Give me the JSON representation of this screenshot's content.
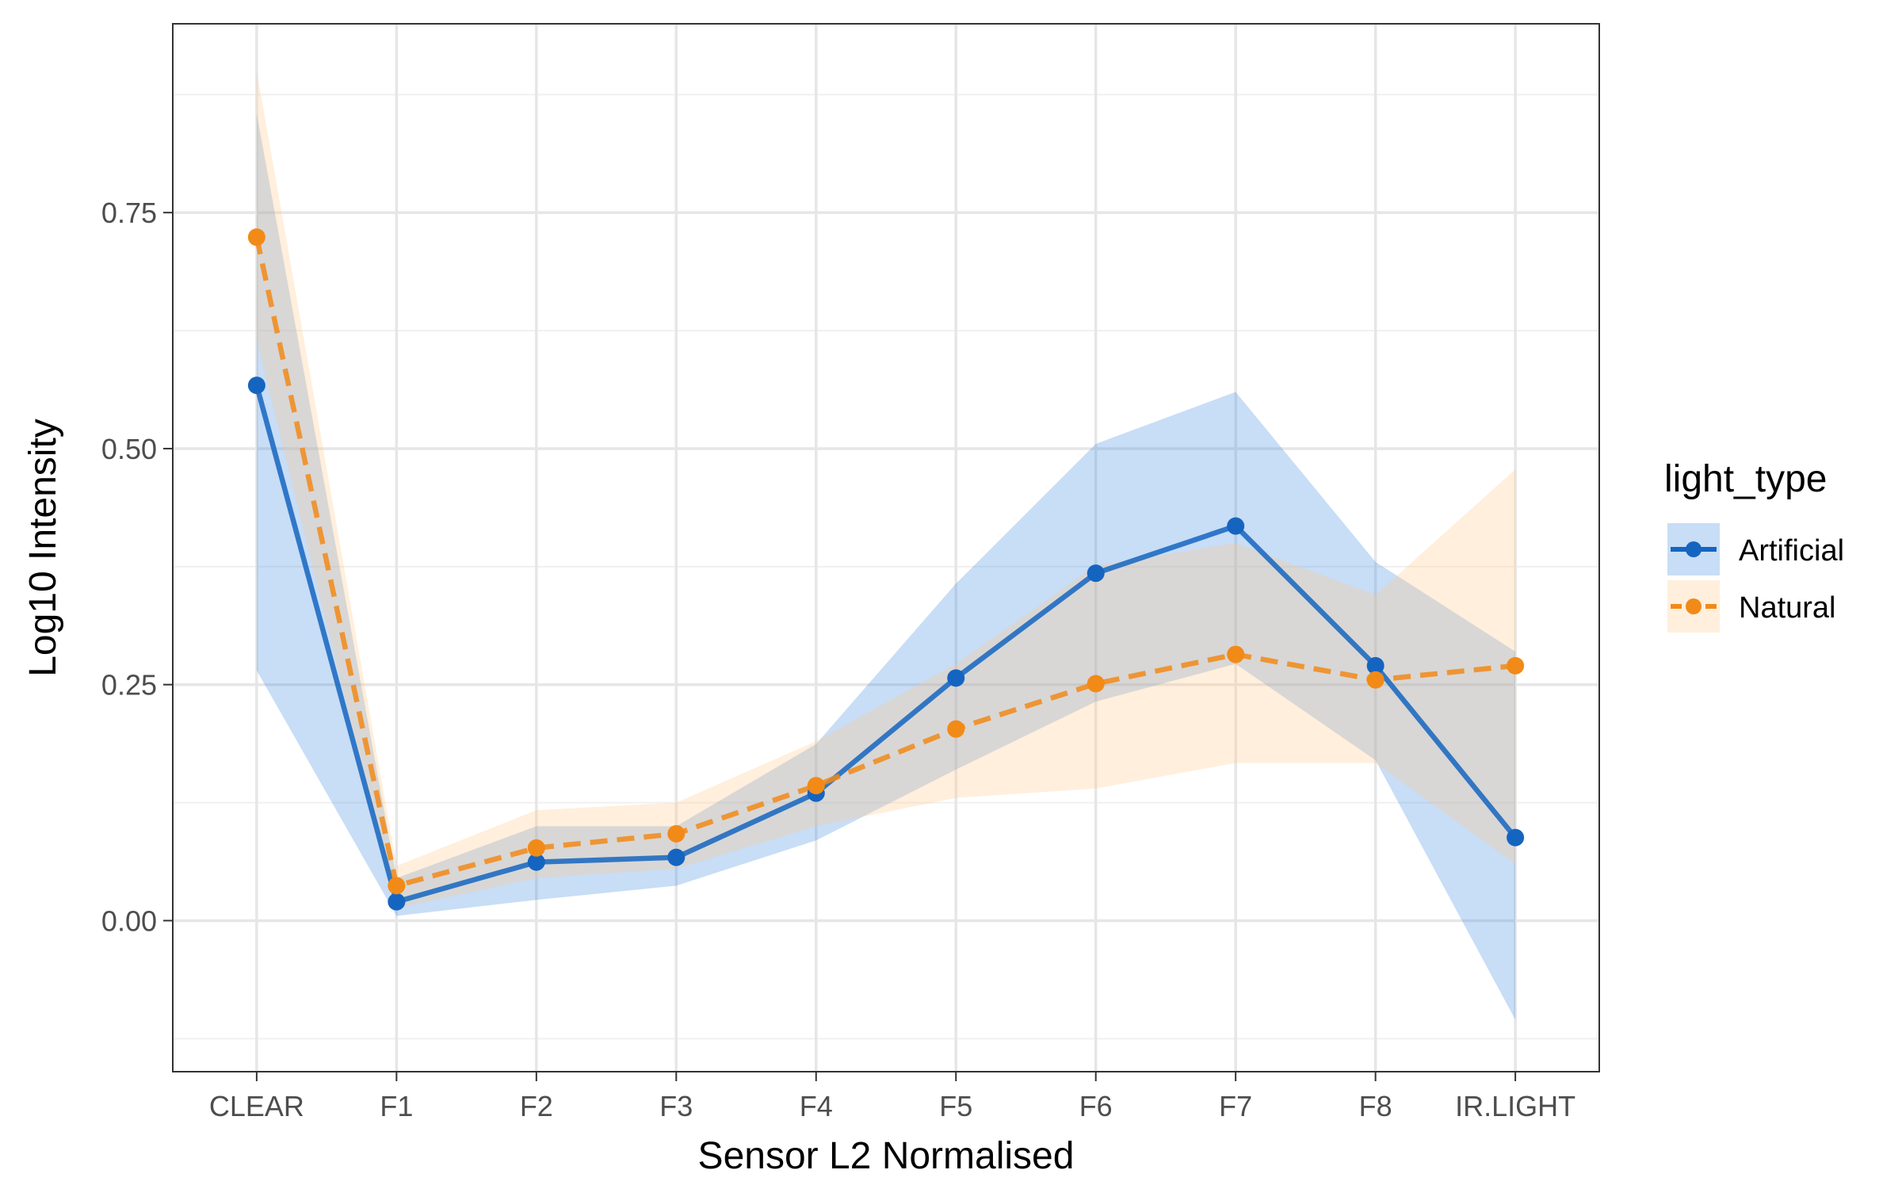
{
  "chart_data": {
    "type": "line",
    "title": "",
    "xlabel": "Sensor L2 Normalised",
    "ylabel": "Log10 Intensity",
    "categories": [
      "CLEAR",
      "F1",
      "F2",
      "F3",
      "F4",
      "F5",
      "F6",
      "F7",
      "F8",
      "IR.LIGHT"
    ],
    "ylim": [
      -0.16,
      0.95
    ],
    "yticks": [
      0.0,
      0.25,
      0.5,
      0.75
    ],
    "ytick_labels": [
      "0.00",
      "0.25",
      "0.50",
      "0.75"
    ],
    "grid": true,
    "legend": {
      "title": "light_type",
      "position": "right"
    },
    "series": [
      {
        "name": "Artificial",
        "color": "#1565c0",
        "fill_color": "#4a90e2",
        "line_style": "solid",
        "values": [
          0.567,
          0.02,
          0.062,
          0.067,
          0.135,
          0.257,
          0.368,
          0.418,
          0.27,
          0.088
        ],
        "lower": [
          0.265,
          0.005,
          0.022,
          0.037,
          0.085,
          0.16,
          0.232,
          0.272,
          0.17,
          -0.105
        ],
        "upper": [
          0.855,
          0.045,
          0.1,
          0.1,
          0.187,
          0.357,
          0.505,
          0.56,
          0.38,
          0.285
        ]
      },
      {
        "name": "Natural",
        "color": "#f28a17",
        "fill_color": "#ffc98a",
        "line_style": "dashed",
        "values": [
          0.724,
          0.037,
          0.077,
          0.092,
          0.143,
          0.203,
          0.251,
          0.282,
          0.255,
          0.27
        ],
        "lower": [
          0.615,
          0.013,
          0.045,
          0.055,
          0.1,
          0.13,
          0.14,
          0.167,
          0.167,
          0.06
        ],
        "upper": [
          0.9,
          0.058,
          0.117,
          0.125,
          0.19,
          0.272,
          0.376,
          0.4,
          0.345,
          0.478
        ]
      }
    ]
  }
}
